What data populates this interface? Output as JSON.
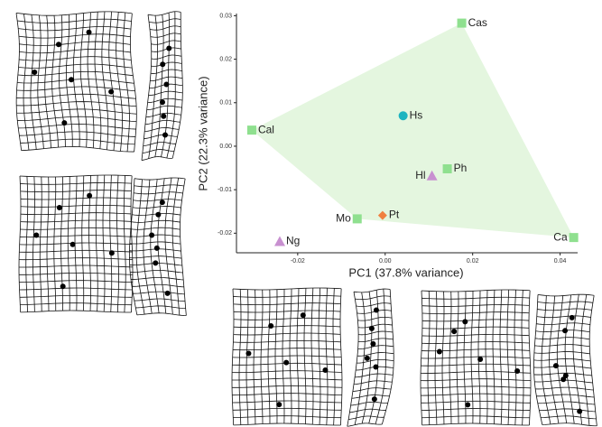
{
  "chart_data": {
    "type": "scatter",
    "x_label": "PC1 (37.8% variance)",
    "y_label": "PC2 (22.3% variance)",
    "xlim": [
      -0.034,
      0.044
    ],
    "ylim": [
      -0.0245,
      0.0305
    ],
    "xticks": [
      -0.02,
      {
        "value": 0,
        "label": "0.00"
      },
      0.02,
      0.04
    ],
    "yticks": [
      -0.02,
      -0.01,
      {
        "value": 0,
        "label": "0.00"
      },
      0.01,
      0.02,
      0.03
    ],
    "points": [
      {
        "label": "Cas",
        "x": 0.0175,
        "y": 0.0283,
        "shape": "square",
        "color": "#8fe08f"
      },
      {
        "label": "Cal",
        "x": -0.0305,
        "y": 0.0037,
        "shape": "square",
        "color": "#8fe08f"
      },
      {
        "label": "Hs",
        "x": 0.0041,
        "y": 0.007,
        "shape": "circle",
        "color": "#1eb4c0"
      },
      {
        "label": "Ph",
        "x": 0.0142,
        "y": -0.0052,
        "shape": "square",
        "color": "#8fe08f"
      },
      {
        "label": "Hl",
        "x": 0.0107,
        "y": -0.0068,
        "shape": "triangle",
        "color": "#c890d0"
      },
      {
        "label": "Pt",
        "x": -0.0006,
        "y": -0.0159,
        "shape": "diamond",
        "color": "#f08040"
      },
      {
        "label": "Mo",
        "x": -0.0064,
        "y": -0.0167,
        "shape": "square",
        "color": "#8fe08f"
      },
      {
        "label": "Ca",
        "x": 0.0431,
        "y": -0.021,
        "shape": "square",
        "color": "#8fe08f"
      },
      {
        "label": "Ng",
        "x": -0.0241,
        "y": -0.0219,
        "shape": "triangle",
        "color": "#c890d0"
      }
    ],
    "hull": [
      0,
      7,
      6,
      1
    ],
    "hull_color": "#e4f6df"
  }
}
